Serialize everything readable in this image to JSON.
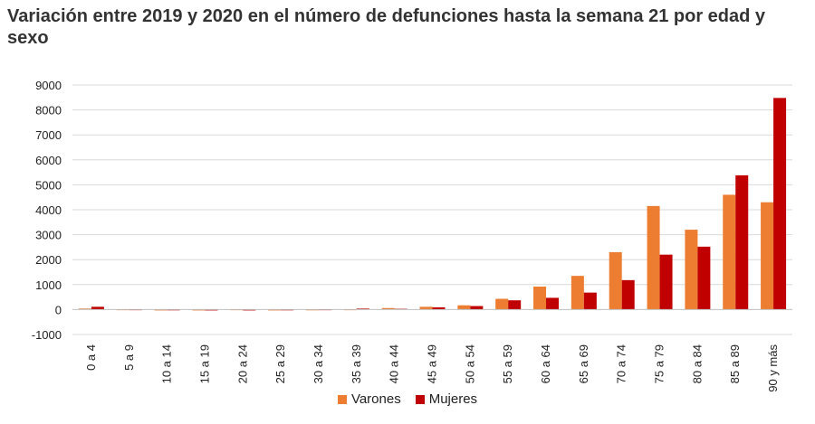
{
  "chart_data": {
    "type": "bar",
    "title": "Variación entre 2019 y 2020 en el número de defunciones hasta la semana 21 por edad y sexo",
    "xlabel": "",
    "ylabel": "",
    "ylim": [
      -1000,
      9000
    ],
    "yticks": [
      -1000,
      0,
      1000,
      2000,
      3000,
      4000,
      5000,
      6000,
      7000,
      8000,
      9000
    ],
    "grid": true,
    "legend_position": "bottom-center",
    "categories": [
      "0 a 4",
      "5 a 9",
      "10 a 14",
      "15 a 19",
      "20 a 24",
      "25 a 29",
      "30 a 34",
      "35 a 39",
      "40 a 44",
      "45 a 49",
      "50 a 54",
      "55 a 59",
      "60 a 64",
      "65 a 69",
      "70 a 74",
      "75 a 79",
      "80 a 84",
      "85 a 89",
      "90 y más"
    ],
    "series": [
      {
        "name": "Varones",
        "color": "#ED7D31",
        "values": [
          40,
          10,
          -10,
          -5,
          10,
          -10,
          5,
          10,
          60,
          110,
          170,
          430,
          920,
          1350,
          2300,
          4150,
          3200,
          4600,
          4300
        ]
      },
      {
        "name": "Mujeres",
        "color": "#C00000",
        "values": [
          110,
          10,
          5,
          0,
          0,
          5,
          10,
          40,
          30,
          90,
          140,
          370,
          470,
          680,
          1180,
          2200,
          2520,
          5380,
          8480
        ]
      }
    ]
  }
}
